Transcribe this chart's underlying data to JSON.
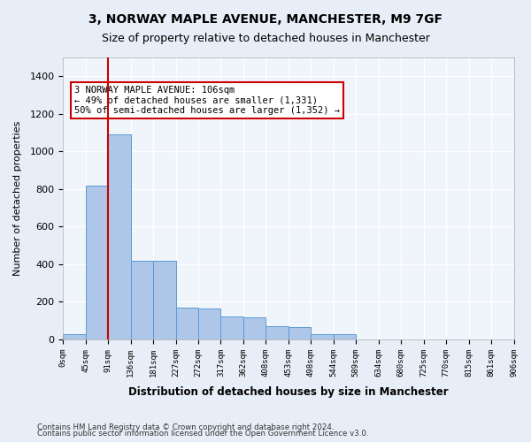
{
  "title1": "3, NORWAY MAPLE AVENUE, MANCHESTER, M9 7GF",
  "title2": "Size of property relative to detached houses in Manchester",
  "xlabel": "Distribution of detached houses by size in Manchester",
  "ylabel": "Number of detached properties",
  "bar_values": [
    30,
    820,
    1090,
    420,
    420,
    170,
    165,
    120,
    115,
    70,
    65,
    30,
    28,
    0,
    0,
    0,
    0,
    0,
    0,
    0
  ],
  "bar_color": "#aec6e8",
  "bar_edge_color": "#5b9bd5",
  "categories": [
    "0sqm",
    "45sqm",
    "91sqm",
    "136sqm",
    "181sqm",
    "227sqm",
    "272sqm",
    "317sqm",
    "362sqm",
    "408sqm",
    "453sqm",
    "498sqm",
    "544sqm",
    "589sqm",
    "634sqm",
    "680sqm",
    "725sqm",
    "770sqm",
    "815sqm",
    "861sqm",
    "906sqm"
  ],
  "ylim": [
    0,
    1500
  ],
  "yticks": [
    0,
    200,
    400,
    600,
    800,
    1000,
    1200,
    1400
  ],
  "vline_x": 2.0,
  "vline_color": "#cc0000",
  "annotation_text": "3 NORWAY MAPLE AVENUE: 106sqm\n← 49% of detached houses are smaller (1,331)\n50% of semi-detached houses are larger (1,352) →",
  "annotation_box_color": "#ffffff",
  "annotation_box_edge": "#cc0000",
  "bg_color": "#e8eef7",
  "plot_bg_color": "#f0f4fb",
  "footer1": "Contains HM Land Registry data © Crown copyright and database right 2024.",
  "footer2": "Contains public sector information licensed under the Open Government Licence v3.0."
}
